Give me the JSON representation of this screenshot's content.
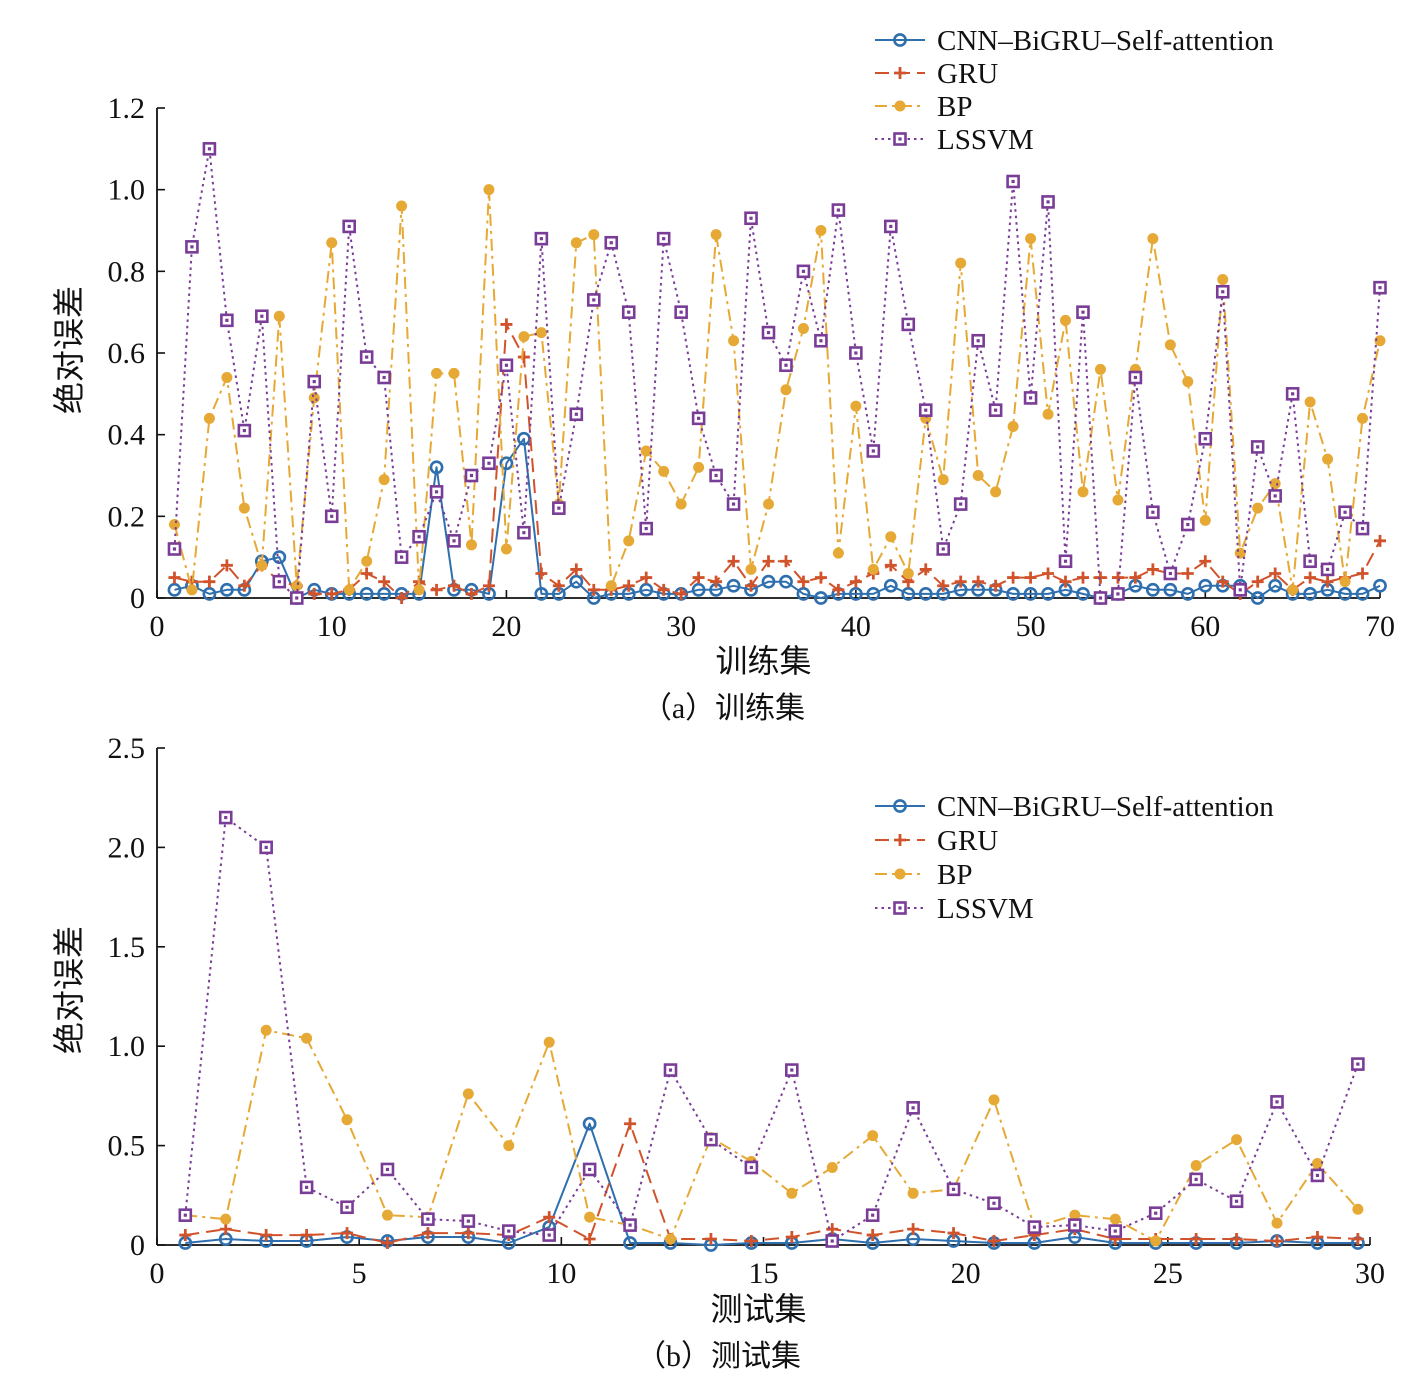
{
  "chart_data": [
    {
      "type": "line",
      "caption": "（a）训练集",
      "xlabel": "训练集",
      "ylabel": "绝对误差",
      "xlim": [
        0,
        70
      ],
      "ylim": [
        0,
        1.2
      ],
      "xticks": [
        "0",
        "10",
        "20",
        "30",
        "40",
        "50",
        "60",
        "70"
      ],
      "yticks": [
        "0",
        "0.2",
        "0.4",
        "0.6",
        "0.8",
        "1.0",
        "1.2"
      ],
      "legend_position": "top-right",
      "x": [
        1,
        2,
        3,
        4,
        5,
        6,
        7,
        8,
        9,
        10,
        11,
        12,
        13,
        14,
        15,
        16,
        17,
        18,
        19,
        20,
        21,
        22,
        23,
        24,
        25,
        26,
        27,
        28,
        29,
        30,
        31,
        32,
        33,
        34,
        35,
        36,
        37,
        38,
        39,
        40,
        41,
        42,
        43,
        44,
        45,
        46,
        47,
        48,
        49,
        50,
        51,
        52,
        53,
        54,
        55,
        56,
        57,
        58,
        59,
        60,
        61,
        62,
        63,
        64,
        65,
        66,
        67,
        68,
        69,
        70
      ],
      "series": [
        {
          "name": "CNN–BiGRU–Self-attention",
          "color": "#2f6fae",
          "marker": "circle",
          "dash": "solid",
          "values": [
            0.02,
            0.03,
            0.01,
            0.02,
            0.02,
            0.09,
            0.1,
            0.0,
            0.02,
            0.01,
            0.01,
            0.01,
            0.01,
            0.01,
            0.01,
            0.32,
            0.02,
            0.02,
            0.01,
            0.33,
            0.39,
            0.01,
            0.01,
            0.04,
            0.0,
            0.01,
            0.01,
            0.02,
            0.01,
            0.01,
            0.02,
            0.02,
            0.03,
            0.02,
            0.04,
            0.04,
            0.01,
            0.0,
            0.01,
            0.01,
            0.01,
            0.03,
            0.01,
            0.01,
            0.01,
            0.02,
            0.02,
            0.02,
            0.01,
            0.01,
            0.01,
            0.02,
            0.01,
            0.0,
            0.01,
            0.03,
            0.02,
            0.02,
            0.01,
            0.03,
            0.03,
            0.03,
            0.0,
            0.03,
            0.01,
            0.01,
            0.02,
            0.01,
            0.01,
            0.03
          ]
        },
        {
          "name": "GRU",
          "color": "#d1532b",
          "marker": "plus",
          "dash": "dashed",
          "values": [
            0.05,
            0.04,
            0.04,
            0.08,
            0.03,
            0.08,
            0.04,
            0.03,
            0.01,
            0.01,
            0.02,
            0.06,
            0.04,
            0.0,
            0.04,
            0.02,
            0.03,
            0.01,
            0.03,
            0.67,
            0.59,
            0.06,
            0.03,
            0.07,
            0.02,
            0.02,
            0.03,
            0.05,
            0.02,
            0.01,
            0.05,
            0.04,
            0.09,
            0.03,
            0.09,
            0.09,
            0.04,
            0.05,
            0.02,
            0.04,
            0.06,
            0.08,
            0.04,
            0.07,
            0.03,
            0.04,
            0.04,
            0.03,
            0.05,
            0.05,
            0.06,
            0.04,
            0.05,
            0.05,
            0.05,
            0.05,
            0.07,
            0.06,
            0.06,
            0.09,
            0.04,
            0.01,
            0.04,
            0.06,
            0.02,
            0.05,
            0.04,
            0.05,
            0.06,
            0.14
          ]
        },
        {
          "name": "BP",
          "color": "#e6a935",
          "marker": "dot",
          "dash": "dashdot",
          "values": [
            0.18,
            0.02,
            0.44,
            0.54,
            0.22,
            0.08,
            0.69,
            0.03,
            0.49,
            0.87,
            0.02,
            0.09,
            0.29,
            0.96,
            0.02,
            0.55,
            0.55,
            0.13,
            1.0,
            0.12,
            0.64,
            0.65,
            0.23,
            0.87,
            0.89,
            0.03,
            0.14,
            0.36,
            0.31,
            0.23,
            0.32,
            0.89,
            0.63,
            0.07,
            0.23,
            0.51,
            0.66,
            0.9,
            0.11,
            0.47,
            0.07,
            0.15,
            0.06,
            0.44,
            0.29,
            0.82,
            0.3,
            0.26,
            0.42,
            0.88,
            0.45,
            0.68,
            0.26,
            0.56,
            0.24,
            0.56,
            0.88,
            0.62,
            0.53,
            0.19,
            0.78,
            0.11,
            0.22,
            0.28,
            0.02,
            0.48,
            0.34,
            0.04,
            0.44,
            0.63
          ]
        },
        {
          "name": "LSSVM",
          "color": "#7a3d97",
          "marker": "square",
          "dash": "dotted",
          "values": [
            0.12,
            0.86,
            1.1,
            0.68,
            0.41,
            0.69,
            0.04,
            0.0,
            0.53,
            0.2,
            0.91,
            0.59,
            0.54,
            0.1,
            0.15,
            0.26,
            0.14,
            0.3,
            0.33,
            0.57,
            0.16,
            0.88,
            0.22,
            0.45,
            0.73,
            0.87,
            0.7,
            0.17,
            0.88,
            0.7,
            0.44,
            0.3,
            0.23,
            0.93,
            0.65,
            0.57,
            0.8,
            0.63,
            0.95,
            0.6,
            0.36,
            0.91,
            0.67,
            0.46,
            0.12,
            0.23,
            0.63,
            0.46,
            1.02,
            0.49,
            0.97,
            0.09,
            0.7,
            0.0,
            0.01,
            0.54,
            0.21,
            0.06,
            0.18,
            0.39,
            0.75,
            0.02,
            0.37,
            0.25,
            0.5,
            0.09,
            0.07,
            0.21,
            0.17,
            0.76
          ]
        }
      ]
    },
    {
      "type": "line",
      "caption": "（b）测试集",
      "xlabel": "测试集",
      "ylabel": "绝对误差",
      "xlim": [
        0,
        30
      ],
      "ylim": [
        0,
        2.5
      ],
      "xticks": [
        "0",
        "5",
        "10",
        "15",
        "20",
        "25",
        "30"
      ],
      "yticks": [
        "0",
        "0.5",
        "1.0",
        "1.5",
        "2.0",
        "2.5"
      ],
      "legend_position": "top-right",
      "x": [
        0.7,
        1.7,
        2.7,
        3.7,
        4.7,
        5.7,
        6.7,
        7.7,
        8.7,
        9.7,
        10.7,
        11.7,
        12.7,
        13.7,
        14.7,
        15.7,
        16.7,
        17.7,
        18.7,
        19.7,
        20.7,
        21.7,
        22.7,
        23.7,
        24.7,
        25.7,
        26.7,
        27.7,
        28.7,
        29.7
      ],
      "series": [
        {
          "name": "CNN–BiGRU–Self-attention",
          "color": "#2f6fae",
          "marker": "circle",
          "dash": "solid",
          "values": [
            0.01,
            0.03,
            0.02,
            0.02,
            0.04,
            0.02,
            0.04,
            0.04,
            0.01,
            0.09,
            0.61,
            0.01,
            0.01,
            0.0,
            0.01,
            0.01,
            0.03,
            0.01,
            0.03,
            0.02,
            0.01,
            0.01,
            0.04,
            0.01,
            0.01,
            0.01,
            0.01,
            0.02,
            0.01,
            0.01
          ]
        },
        {
          "name": "GRU",
          "color": "#d1532b",
          "marker": "plus",
          "dash": "dashed",
          "values": [
            0.05,
            0.08,
            0.05,
            0.05,
            0.06,
            0.01,
            0.06,
            0.06,
            0.05,
            0.14,
            0.03,
            0.61,
            0.03,
            0.03,
            0.02,
            0.04,
            0.08,
            0.05,
            0.08,
            0.06,
            0.02,
            0.05,
            0.08,
            0.03,
            0.03,
            0.03,
            0.03,
            0.02,
            0.04,
            0.03
          ]
        },
        {
          "name": "BP",
          "color": "#e6a935",
          "marker": "dot",
          "dash": "dashdot",
          "values": [
            0.15,
            0.13,
            1.08,
            1.04,
            0.63,
            0.15,
            0.14,
            0.76,
            0.5,
            1.02,
            0.14,
            0.1,
            0.03,
            0.54,
            0.42,
            0.26,
            0.39,
            0.55,
            0.26,
            0.28,
            0.73,
            0.09,
            0.15,
            0.13,
            0.02,
            0.4,
            0.53,
            0.11,
            0.41,
            0.18
          ]
        },
        {
          "name": "LSSVM",
          "color": "#7a3d97",
          "marker": "square",
          "dash": "dotted",
          "values": [
            0.15,
            2.15,
            2.0,
            0.29,
            0.19,
            0.38,
            0.13,
            0.12,
            0.07,
            0.05,
            0.38,
            0.1,
            0.88,
            0.53,
            0.39,
            0.88,
            0.02,
            0.15,
            0.69,
            0.28,
            0.21,
            0.09,
            0.1,
            0.07,
            0.16,
            0.33,
            0.22,
            0.72,
            0.35,
            0.91
          ]
        }
      ]
    }
  ]
}
